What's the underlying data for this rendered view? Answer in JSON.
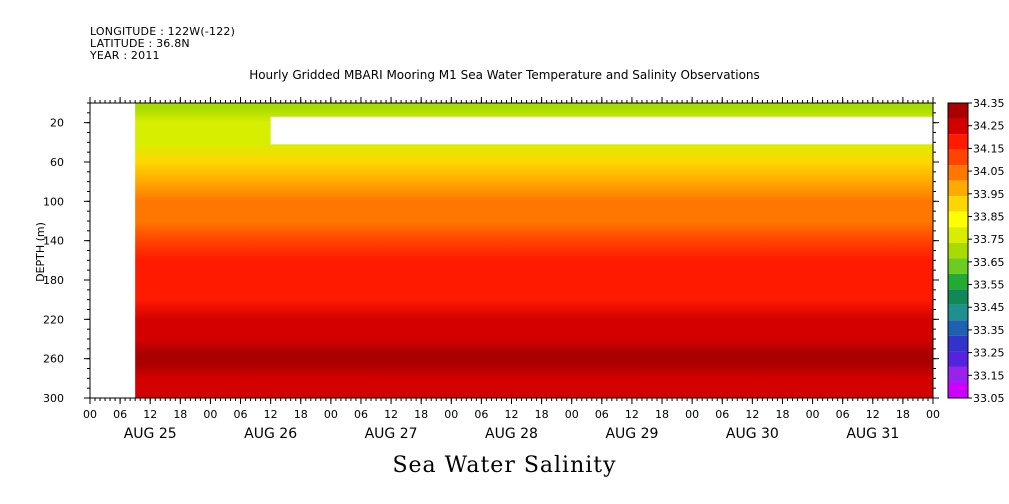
{
  "header": {
    "longitude": "LONGITUDE : 122W(-122)",
    "latitude": "LATITUDE : 36.8N",
    "year": "YEAR : 2011"
  },
  "chart_data": {
    "type": "heatmap",
    "title": "Hourly Gridded MBARI Mooring M1 Sea Water Temperature and Salinity Observations",
    "subtitle": "Sea Water Salinity",
    "ylabel": "DEPTH (m)",
    "ylim": [
      300,
      0
    ],
    "y_ticks": [
      20,
      60,
      100,
      140,
      180,
      220,
      260,
      300
    ],
    "x_tick_labels": [
      "00",
      "06",
      "12",
      "18",
      "00",
      "06",
      "12",
      "18",
      "00",
      "06",
      "12",
      "18",
      "00",
      "06",
      "12",
      "18",
      "00",
      "06",
      "12",
      "18",
      "00",
      "06",
      "12",
      "18",
      "00",
      "06",
      "12",
      "18",
      "00"
    ],
    "day_labels": [
      "AUG 25",
      "AUG 26",
      "AUG 27",
      "AUG 28",
      "AUG 29",
      "AUG 30",
      "AUG 31"
    ],
    "data_start_hour": 9,
    "colorbar": {
      "levels": [
        "34.35",
        "34.25",
        "34.15",
        "34.05",
        "33.95",
        "33.85",
        "33.75",
        "33.65",
        "33.55",
        "33.45",
        "33.35",
        "33.25",
        "33.15",
        "33.05"
      ],
      "colors": [
        "#aa0000",
        "#d40000",
        "#ff1a00",
        "#ff4400",
        "#ff7700",
        "#ffaa00",
        "#ffd700",
        "#ffff00",
        "#d8ee00",
        "#a8dc00",
        "#6ccc22",
        "#22aa33",
        "#118855",
        "#1f8f8f",
        "#2060b0",
        "#3333cc",
        "#5522dd",
        "#9922ee",
        "#cc00ff"
      ]
    },
    "depth_profile": [
      {
        "depth": 5,
        "value": 33.45
      },
      {
        "depth": 20,
        "value": 33.55
      },
      {
        "depth": 40,
        "value": 33.6
      },
      {
        "depth": 60,
        "value": 33.75
      },
      {
        "depth": 80,
        "value": 33.85
      },
      {
        "depth": 100,
        "value": 33.95
      },
      {
        "depth": 120,
        "value": 34.0
      },
      {
        "depth": 140,
        "value": 34.1
      },
      {
        "depth": 160,
        "value": 34.17
      },
      {
        "depth": 180,
        "value": 34.17
      },
      {
        "depth": 200,
        "value": 34.22
      },
      {
        "depth": 220,
        "value": 34.27
      },
      {
        "depth": 240,
        "value": 34.3
      },
      {
        "depth": 255,
        "value": 34.38
      },
      {
        "depth": 265,
        "value": 34.38
      },
      {
        "depth": 280,
        "value": 34.3
      },
      {
        "depth": 300,
        "value": 34.3
      }
    ],
    "missing_data_block": {
      "depth_range": [
        14,
        42
      ],
      "time_range_hours": [
        36,
        192
      ]
    }
  }
}
